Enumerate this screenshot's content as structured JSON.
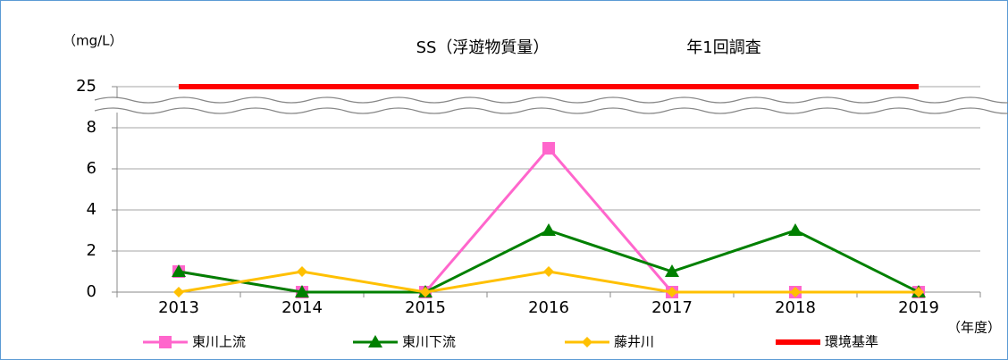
{
  "chart_data": {
    "type": "line",
    "title": "SS（浮遊物質量）",
    "subtitle": "年1回調査",
    "y_label": "（mg/L）",
    "x_label": "（年度）",
    "categories": [
      "2013",
      "2014",
      "2015",
      "2016",
      "2017",
      "2018",
      "2019"
    ],
    "series": [
      {
        "name": "東川上流",
        "color": "#ff66cc",
        "marker": "square",
        "values": [
          1,
          0,
          0,
          7,
          0,
          0,
          0
        ]
      },
      {
        "name": "東川下流",
        "color": "#008000",
        "marker": "triangle",
        "values": [
          1,
          0,
          0,
          3,
          1,
          3,
          0
        ]
      },
      {
        "name": "藤井川",
        "color": "#ffc000",
        "marker": "diamond",
        "values": [
          0,
          1,
          0,
          1,
          0,
          0,
          0
        ]
      },
      {
        "name": "環境基準",
        "color": "#ff0000",
        "marker": "none",
        "values": [
          25,
          25,
          25,
          25,
          25,
          25,
          25
        ]
      }
    ],
    "ylim": [
      0,
      25
    ],
    "yticks": [
      0,
      2,
      4,
      6,
      8,
      25
    ],
    "axis_break": true,
    "grid": true,
    "legend": "bottom"
  }
}
